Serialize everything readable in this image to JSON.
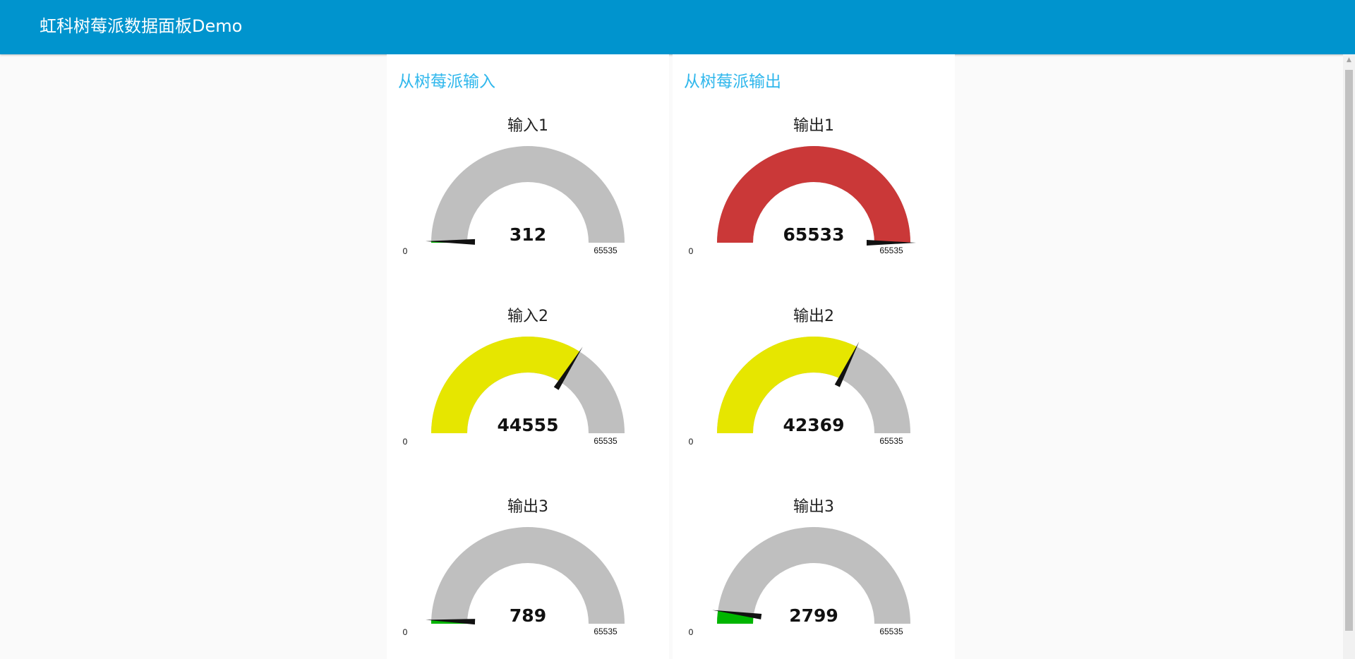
{
  "header": {
    "title": "虹科树莓派数据面板Demo"
  },
  "groups": [
    {
      "title": "从树莓派输入",
      "gauges": [
        {
          "label": "输入1",
          "value": 312,
          "min": 0,
          "max": 65535,
          "value_text": "312",
          "min_text": "0",
          "max_text": "65535",
          "fill_color": "#00b500"
        },
        {
          "label": "输入2",
          "value": 44555,
          "min": 0,
          "max": 65535,
          "value_text": "44555",
          "min_text": "0",
          "max_text": "65535",
          "fill_color": "#e6e600"
        },
        {
          "label": "输出3",
          "value": 789,
          "min": 0,
          "max": 65535,
          "value_text": "789",
          "min_text": "0",
          "max_text": "65535",
          "fill_color": "#00b500"
        }
      ]
    },
    {
      "title": "从树莓派输出",
      "gauges": [
        {
          "label": "输出1",
          "value": 65533,
          "min": 0,
          "max": 65535,
          "value_text": "65533",
          "min_text": "0",
          "max_text": "65535",
          "fill_color": "#ca3838"
        },
        {
          "label": "输出2",
          "value": 42369,
          "min": 0,
          "max": 65535,
          "value_text": "42369",
          "min_text": "0",
          "max_text": "65535",
          "fill_color": "#e6e600"
        },
        {
          "label": "输出3",
          "value": 2799,
          "min": 0,
          "max": 65535,
          "value_text": "2799",
          "min_text": "0",
          "max_text": "65535",
          "fill_color": "#00b500"
        }
      ]
    }
  ],
  "colors": {
    "header_bg": "#0094ce",
    "group_title": "#2fb7ec",
    "gauge_track": "#bfbfbf",
    "needle": "#111111"
  },
  "icons": {
    "scroll_up": "chevron-up-icon"
  }
}
